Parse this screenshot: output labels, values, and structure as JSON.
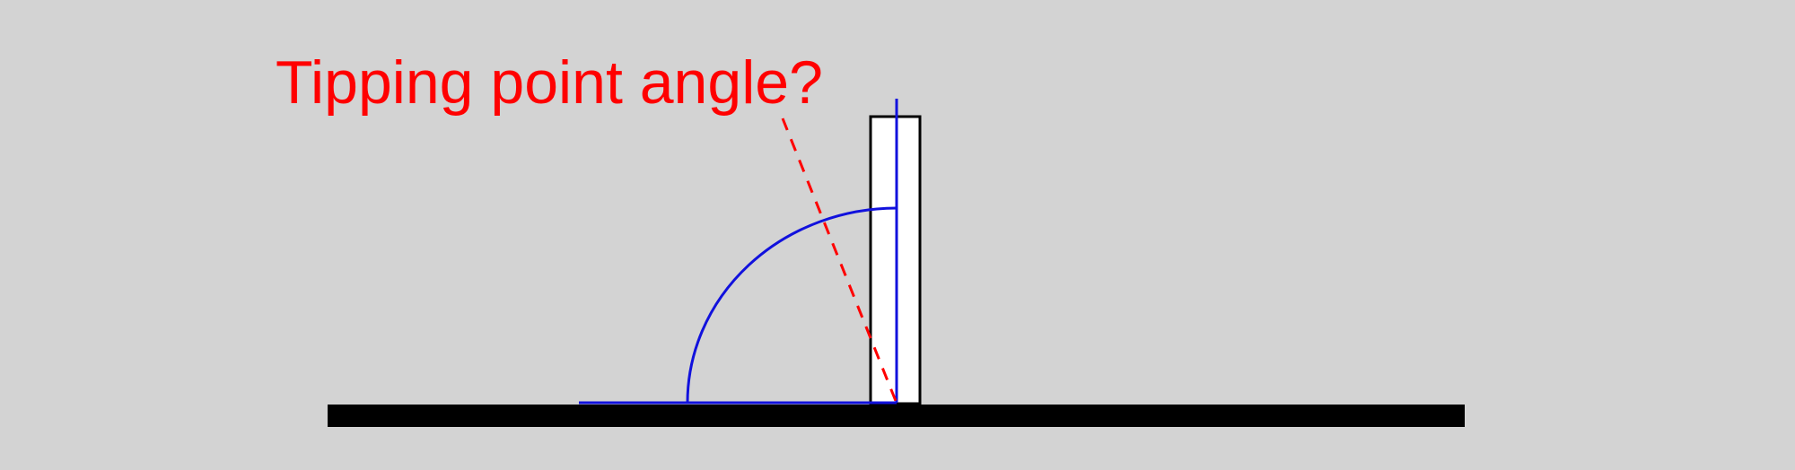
{
  "diagram": {
    "title": "Tipping point angle?",
    "colors": {
      "background": "#d3d3d3",
      "title": "#ff0000",
      "ground": "#000000",
      "block_fill": "#ffffff",
      "block_outline": "#000000",
      "angle_lines": "#1111dd",
      "tip_line": "#ff0000"
    },
    "elements": [
      "ground-bar",
      "upright-block",
      "block-center-axis",
      "angle-baseline",
      "angle-arc",
      "tipping-line"
    ]
  }
}
